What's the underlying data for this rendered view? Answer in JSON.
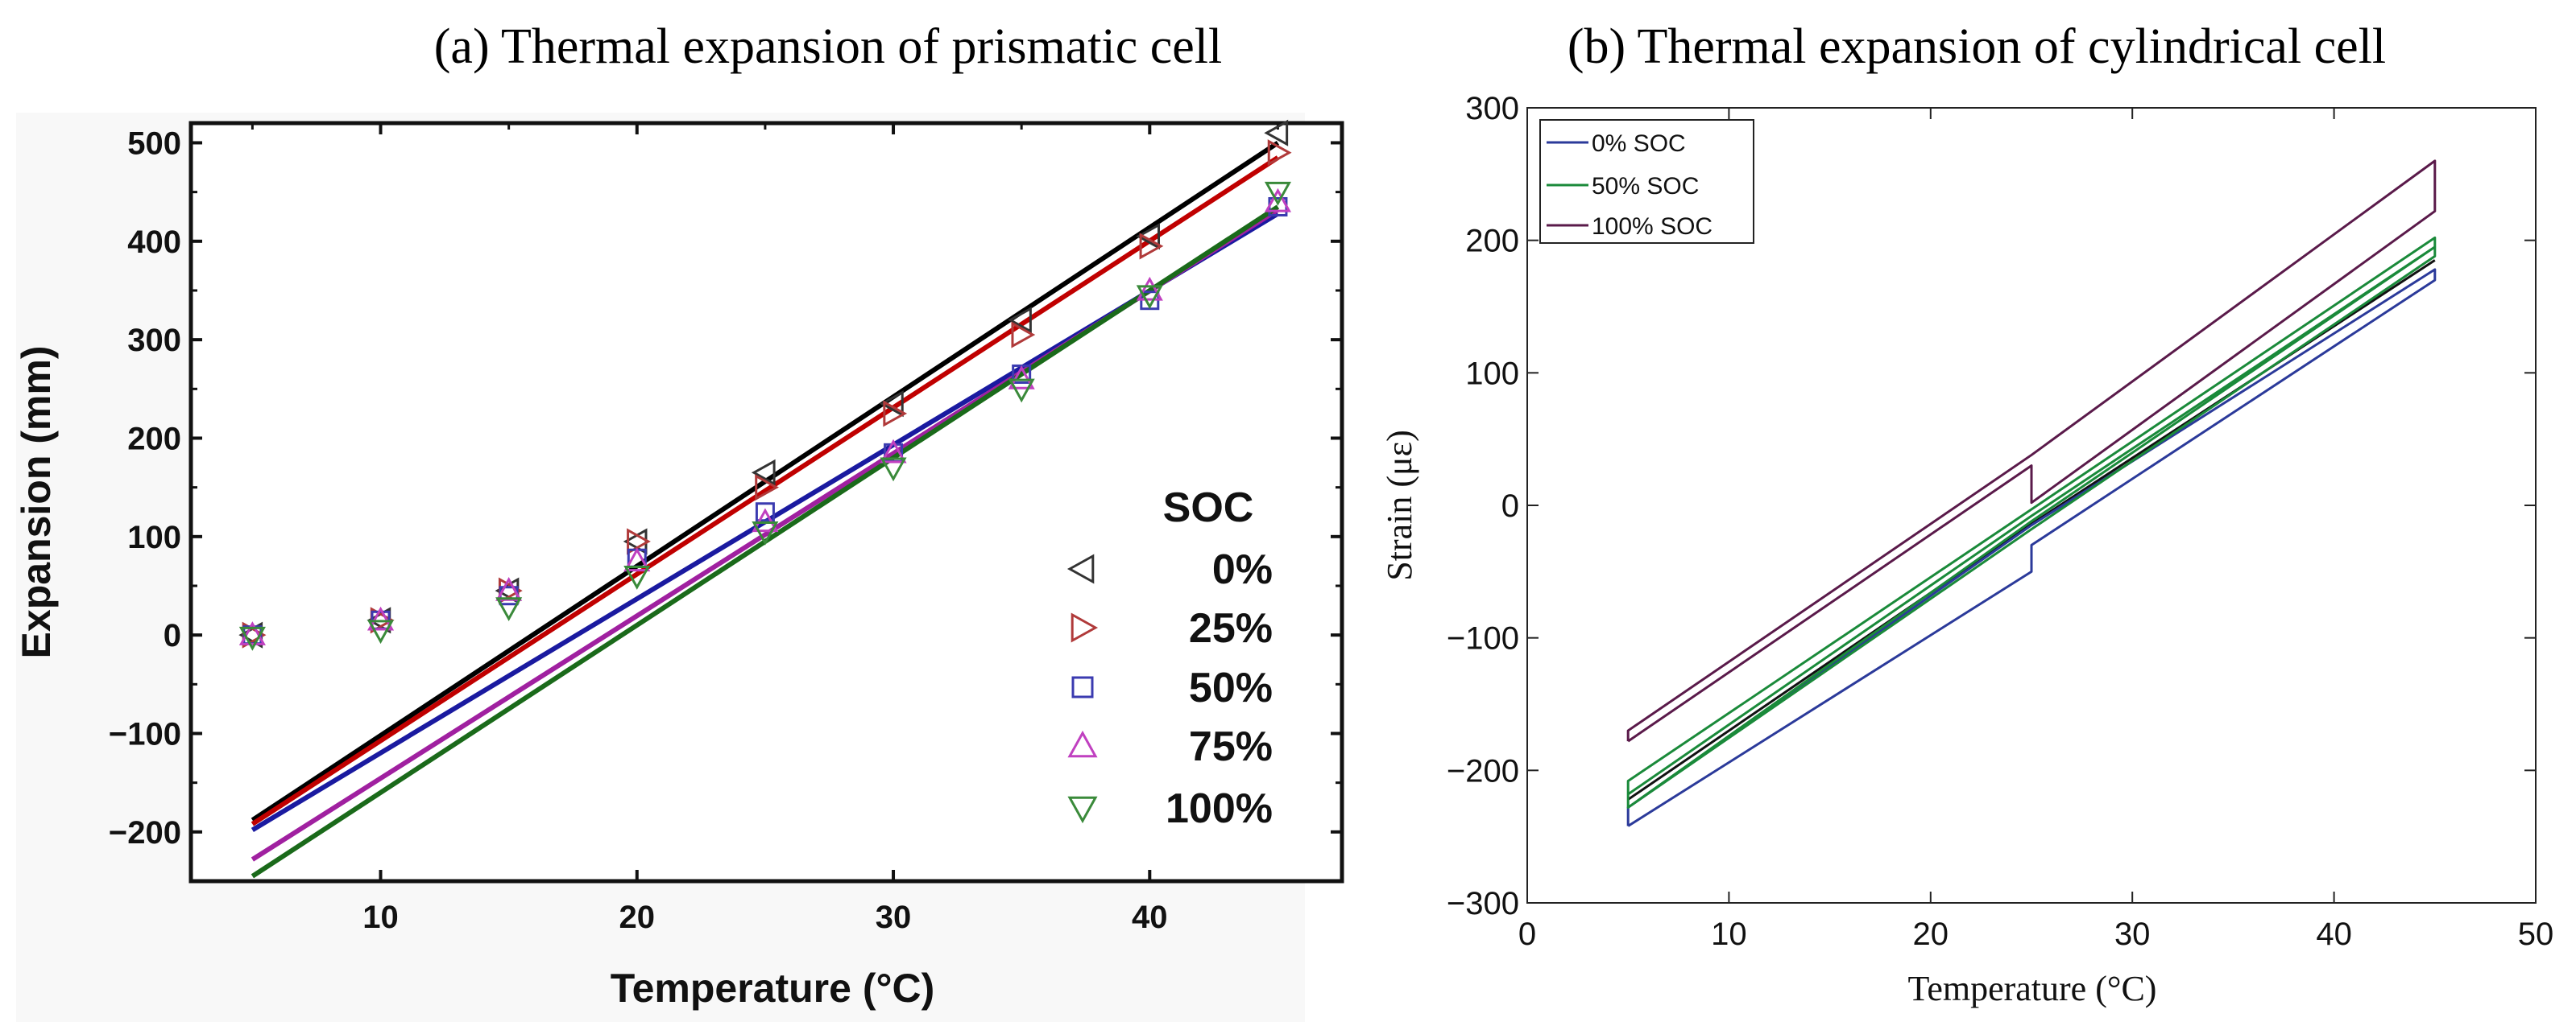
{
  "chart_data": [
    {
      "type": "scatter",
      "title": "(a) Thermal expansion of prismatic cell",
      "xlabel": "Temperature (°C)",
      "ylabel": "Expansion (mm)",
      "xlim": [
        2.6,
        47.5
      ],
      "ylim": [
        -250,
        520
      ],
      "xticks": [
        10,
        20,
        30,
        40
      ],
      "yticks": [
        -200,
        -100,
        0,
        100,
        200,
        300,
        400,
        500
      ],
      "xtick_labels": [
        "10",
        "20",
        "30",
        "40"
      ],
      "ytick_labels": [
        "−200",
        "−100",
        "0",
        "100",
        "200",
        "300",
        "400",
        "500"
      ],
      "legend_title": "SOC",
      "legend_placement": "right",
      "x": [
        5,
        10,
        15,
        20,
        25,
        30,
        35,
        40,
        45
      ],
      "series": [
        {
          "name": "0%",
          "marker": "triangle-left",
          "color": "#333333",
          "line_color": "#000000",
          "values": [
            0,
            15,
            45,
            95,
            165,
            235,
            320,
            405,
            510
          ],
          "fit": [
            [
              5,
              -188
            ],
            [
              45,
              500
            ]
          ]
        },
        {
          "name": "25%",
          "marker": "triangle-right",
          "color": "#b03a3a",
          "line_color": "#c00000",
          "values": [
            0,
            15,
            45,
            95,
            150,
            225,
            305,
            395,
            490
          ],
          "fit": [
            [
              5,
              -192
            ],
            [
              45,
              485
            ]
          ]
        },
        {
          "name": "50%",
          "marker": "square",
          "color": "#3b3bb0",
          "line_color": "#1a1aa0",
          "values": [
            0,
            15,
            40,
            78,
            125,
            185,
            265,
            340,
            435
          ],
          "fit": [
            [
              5,
              -198
            ],
            [
              45,
              428
            ]
          ]
        },
        {
          "name": "75%",
          "marker": "triangle-up",
          "color": "#c040c0",
          "line_color": "#a020a0",
          "values": [
            0,
            15,
            45,
            75,
            115,
            185,
            260,
            350,
            440
          ],
          "fit": [
            [
              5,
              -228
            ],
            [
              45,
              432
            ]
          ]
        },
        {
          "name": "100%",
          "marker": "triangle-down",
          "color": "#3a8a3a",
          "line_color": "#1a6a1a",
          "values": [
            -2,
            5,
            28,
            60,
            105,
            170,
            250,
            345,
            450
          ],
          "fit": [
            [
              5,
              -245
            ],
            [
              45,
              435
            ]
          ]
        }
      ]
    },
    {
      "type": "line",
      "title": "(b) Thermal expansion of cylindrical cell",
      "xlabel": "Temperature (°C)",
      "ylabel": "Strain (με)",
      "xlim": [
        0,
        50
      ],
      "ylim": [
        -300,
        300
      ],
      "xticks": [
        0,
        10,
        20,
        30,
        40,
        50
      ],
      "yticks": [
        -300,
        -200,
        -100,
        0,
        100,
        200,
        300
      ],
      "xtick_labels": [
        "0",
        "10",
        "20",
        "30",
        "40",
        "50"
      ],
      "ytick_labels": [
        "−300",
        "−200",
        "−100",
        "0",
        "100",
        "200",
        "300"
      ],
      "legend_placement": "top-left",
      "series": [
        {
          "name": "0% SOC",
          "color": "#2b3a9a",
          "points": [
            [
              5,
              -242
            ],
            [
              25,
              -50
            ],
            [
              25,
              -38
            ],
            [
              25,
              -30
            ],
            [
              45,
              170
            ],
            [
              45,
              178
            ],
            [
              25,
              -15
            ],
            [
              5,
              -228
            ],
            [
              5,
              -242
            ]
          ]
        },
        {
          "name": "50% SOC",
          "color": "#1a8a3a",
          "points": [
            [
              5,
              -228
            ],
            [
              25,
              -18
            ],
            [
              45,
              188
            ],
            [
              45,
              202
            ],
            [
              25,
              -3
            ],
            [
              5,
              -208
            ],
            [
              5,
              -228
            ],
            [
              25,
              -12
            ],
            [
              45,
              195
            ],
            [
              25,
              -8
            ],
            [
              5,
              -218
            ]
          ]
        },
        {
          "name": "100% SOC",
          "color": "#5a1a4a",
          "points": [
            [
              5,
              -178
            ],
            [
              25,
              30
            ],
            [
              25,
              2
            ],
            [
              45,
              222
            ],
            [
              45,
              260
            ],
            [
              25,
              38
            ],
            [
              5,
              -170
            ],
            [
              5,
              -178
            ]
          ]
        }
      ],
      "extra_lines": [
        {
          "color": "#111111",
          "points": [
            [
              5,
              -222
            ],
            [
              25,
              -14
            ],
            [
              45,
              185
            ]
          ]
        }
      ]
    }
  ]
}
